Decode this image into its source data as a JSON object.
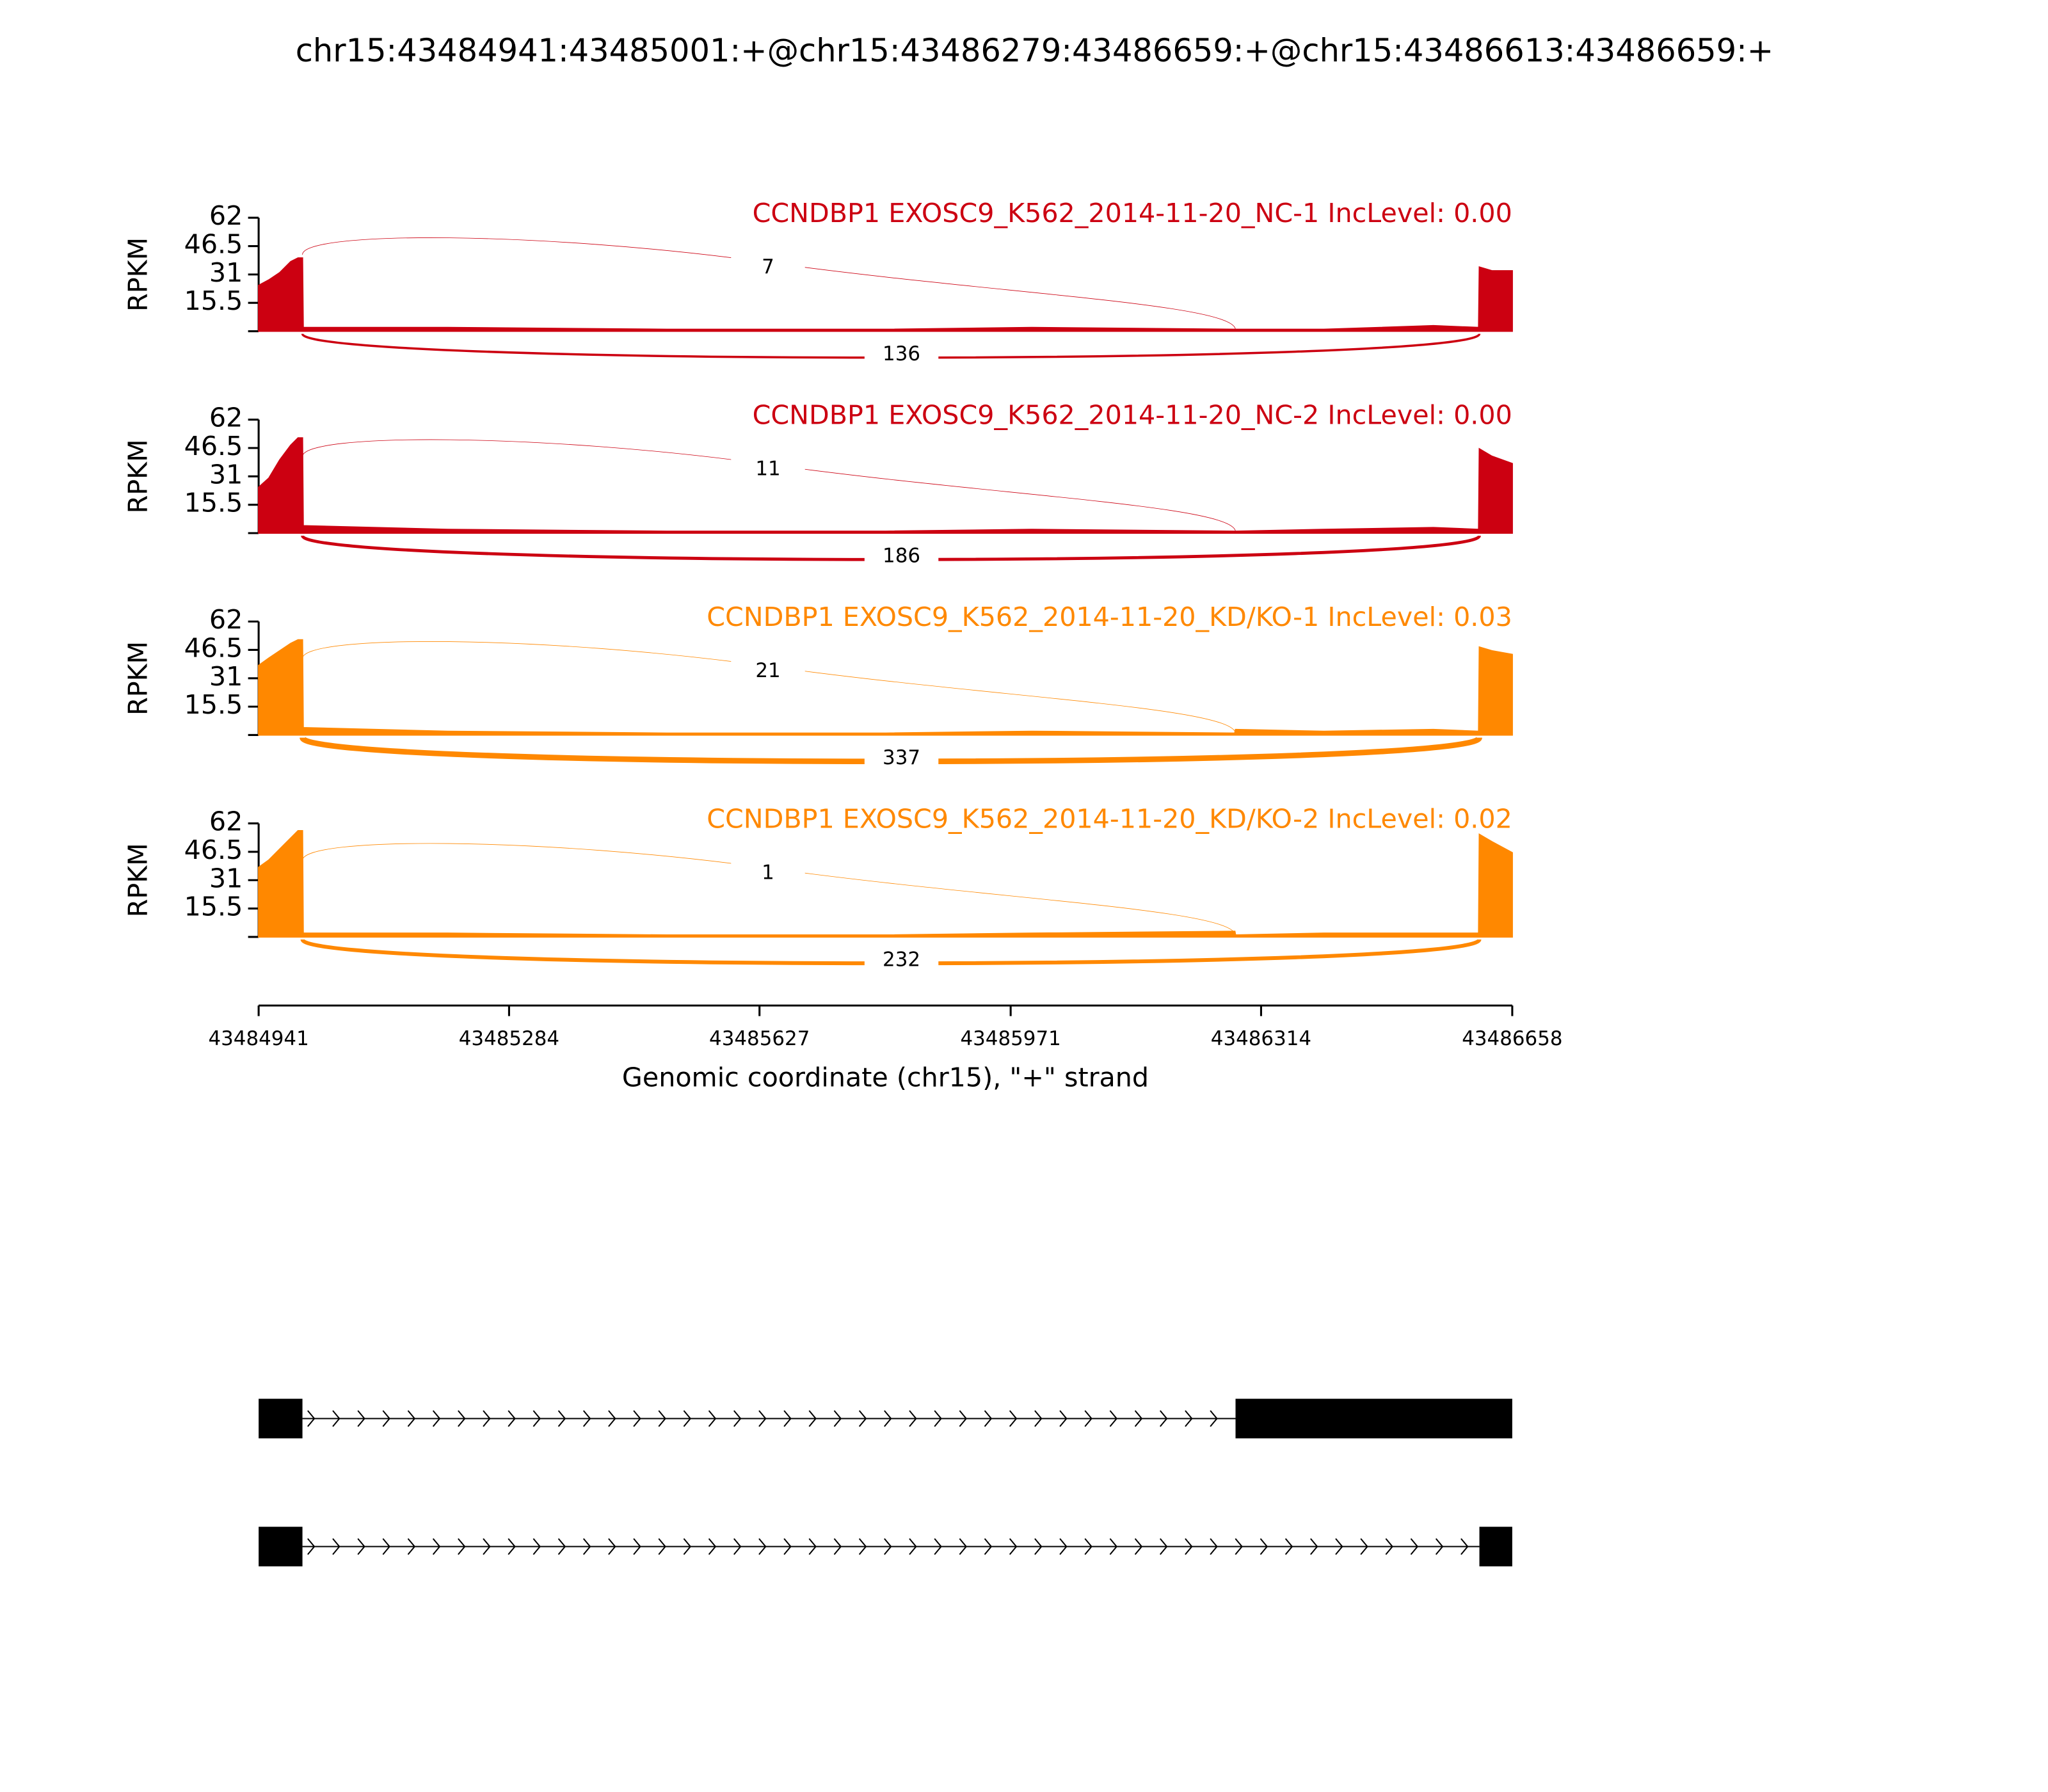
{
  "chart_data": {
    "type": "sashimi",
    "title": "chr15:43484941:43485001:+@chr15:43486279:43486659:+@chr15:43486613:43486659:+",
    "xlabel": "Genomic coordinate (chr15), \"+\" strand",
    "xlim": [
      43484941,
      43486658
    ],
    "xticks": [
      43484941,
      43485284,
      43485627,
      43485971,
      43486314,
      43486658
    ],
    "tracks": [
      {
        "name": "CCNDBP1 EXOSC9_K562_2014-11-20_NC-1 IncLevel: 0.00",
        "color": "#cc0011",
        "ylabel": "RPKM",
        "ylim": [
          0,
          62
        ],
        "yticks": [
          15.5,
          31,
          46.5,
          62
        ],
        "x": [
          43484941,
          43484955,
          43484970,
          43484985,
          43484995,
          43485001,
          43485002,
          43485200,
          43485500,
          43485800,
          43486000,
          43486278,
          43486279,
          43486400,
          43486550,
          43486612,
          43486613,
          43486630,
          43486658
        ],
        "values": [
          25,
          28,
          32,
          38,
          40,
          40,
          2,
          2,
          1,
          1,
          2,
          1,
          1,
          1,
          3,
          2,
          35,
          33,
          33
        ],
        "junctions": [
          {
            "start": 43485001,
            "end": 43486279,
            "count": 7
          },
          {
            "start": 43485001,
            "end": 43486613,
            "count": 136
          }
        ]
      },
      {
        "name": "CCNDBP1 EXOSC9_K562_2014-11-20_NC-2 IncLevel: 0.00",
        "color": "#cc0011",
        "ylabel": "RPKM",
        "ylim": [
          0,
          62
        ],
        "yticks": [
          15.5,
          31,
          46.5,
          62
        ],
        "x": [
          43484941,
          43484955,
          43484970,
          43484985,
          43484995,
          43485001,
          43485002,
          43485200,
          43485500,
          43485800,
          43486000,
          43486278,
          43486279,
          43486400,
          43486550,
          43486612,
          43486613,
          43486630,
          43486658
        ],
        "values": [
          25,
          30,
          40,
          48,
          52,
          52,
          4,
          2,
          1,
          1,
          2,
          1,
          1,
          2,
          3,
          2,
          46,
          42,
          38
        ],
        "junctions": [
          {
            "start": 43485001,
            "end": 43486279,
            "count": 11
          },
          {
            "start": 43485001,
            "end": 43486613,
            "count": 186
          }
        ]
      },
      {
        "name": "CCNDBP1 EXOSC9_K562_2014-11-20_KD/KO-1 IncLevel: 0.03",
        "color": "#ff8800",
        "ylabel": "RPKM",
        "ylim": [
          0,
          62
        ],
        "yticks": [
          15.5,
          31,
          46.5,
          62
        ],
        "x": [
          43484941,
          43484955,
          43484970,
          43484985,
          43484995,
          43485001,
          43485002,
          43485200,
          43485500,
          43485800,
          43486000,
          43486278,
          43486279,
          43486400,
          43486550,
          43486612,
          43486613,
          43486630,
          43486658
        ],
        "values": [
          38,
          42,
          46,
          50,
          52,
          52,
          4,
          2,
          1,
          1,
          2,
          1,
          3,
          2,
          3,
          2,
          48,
          46,
          44
        ],
        "junctions": [
          {
            "start": 43485001,
            "end": 43486279,
            "count": 21
          },
          {
            "start": 43485001,
            "end": 43486613,
            "count": 337
          }
        ]
      },
      {
        "name": "CCNDBP1 EXOSC9_K562_2014-11-20_KD/KO-2 IncLevel: 0.02",
        "color": "#ff8800",
        "ylabel": "RPKM",
        "ylim": [
          0,
          62
        ],
        "yticks": [
          15.5,
          31,
          46.5,
          62
        ],
        "x": [
          43484941,
          43484955,
          43484970,
          43484985,
          43484995,
          43485001,
          43485002,
          43485200,
          43485500,
          43485800,
          43486000,
          43486278,
          43486279,
          43486400,
          43486550,
          43486612,
          43486613,
          43486630,
          43486658
        ],
        "values": [
          38,
          42,
          48,
          54,
          58,
          58,
          2,
          2,
          1,
          1,
          2,
          3,
          1,
          2,
          2,
          2,
          56,
          52,
          46
        ],
        "junctions": [
          {
            "start": 43485001,
            "end": 43486279,
            "count": 1
          },
          {
            "start": 43485001,
            "end": 43486613,
            "count": 232
          }
        ]
      }
    ],
    "transcripts": [
      {
        "exons": [
          [
            43484941,
            43485001
          ],
          [
            43486279,
            43486659
          ]
        ]
      },
      {
        "exons": [
          [
            43484941,
            43485001
          ],
          [
            43486613,
            43486659
          ]
        ]
      }
    ]
  }
}
